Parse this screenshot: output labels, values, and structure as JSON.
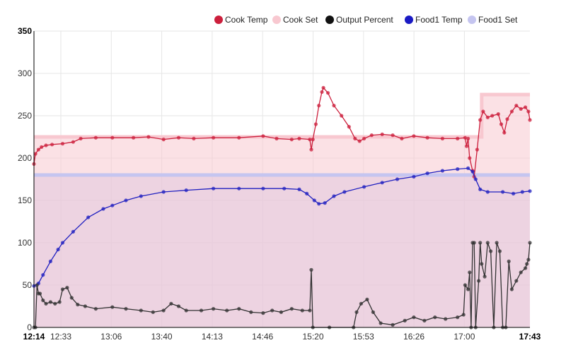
{
  "chart_data": {
    "type": "line",
    "title": "",
    "xlabel": "",
    "ylabel": "",
    "ylim": [
      0,
      350
    ],
    "xlim": [
      "12:14",
      "17:43"
    ],
    "grid": true,
    "legend_position": "top-right",
    "x_ticks": [
      {
        "label": "12:14",
        "bold": true
      },
      {
        "label": "12:33",
        "bold": false
      },
      {
        "label": "13:06",
        "bold": false
      },
      {
        "label": "13:40",
        "bold": false
      },
      {
        "label": "14:13",
        "bold": false
      },
      {
        "label": "14:46",
        "bold": false
      },
      {
        "label": "15:20",
        "bold": false
      },
      {
        "label": "15:53",
        "bold": false
      },
      {
        "label": "16:26",
        "bold": false
      },
      {
        "label": "17:00",
        "bold": false
      },
      {
        "label": "17:43",
        "bold": true
      }
    ],
    "y_ticks": [
      {
        "label": "0",
        "value": 0
      },
      {
        "label": "50",
        "value": 50
      },
      {
        "label": "100",
        "value": 100
      },
      {
        "label": "150",
        "value": 150
      },
      {
        "label": "200",
        "value": 200
      },
      {
        "label": "250",
        "value": 250
      },
      {
        "label": "300",
        "value": 300
      },
      {
        "label": "350",
        "value": 350,
        "bold": true
      }
    ],
    "series": [
      {
        "name": "Food1 Set",
        "color": "#c5c5f0",
        "kind": "step-area",
        "points": [
          [
            "12:14",
            180
          ],
          [
            "17:43",
            180
          ]
        ]
      },
      {
        "name": "Cook Set",
        "color": "#f8c8d0",
        "kind": "step-area",
        "points": [
          [
            "12:14",
            225
          ],
          [
            "17:11",
            225
          ],
          [
            "17:11",
            275
          ],
          [
            "17:43",
            275
          ]
        ]
      },
      {
        "name": "Cook Temp",
        "color": "#cc1f3c",
        "kind": "line",
        "points": [
          [
            "12:14",
            193
          ],
          [
            "12:15",
            205
          ],
          [
            "12:17",
            210
          ],
          [
            "12:19",
            213
          ],
          [
            "12:22",
            215
          ],
          [
            "12:26",
            216
          ],
          [
            "12:33",
            217
          ],
          [
            "12:40",
            219
          ],
          [
            "12:45",
            223
          ],
          [
            "12:55",
            224
          ],
          [
            "13:06",
            224
          ],
          [
            "13:20",
            224
          ],
          [
            "13:30",
            225
          ],
          [
            "13:40",
            222
          ],
          [
            "13:50",
            224
          ],
          [
            "14:00",
            223
          ],
          [
            "14:13",
            224
          ],
          [
            "14:30",
            224
          ],
          [
            "14:46",
            226
          ],
          [
            "14:55",
            223
          ],
          [
            "15:05",
            222
          ],
          [
            "15:10",
            223
          ],
          [
            "15:17",
            222
          ],
          [
            "15:18",
            210
          ],
          [
            "15:19",
            222
          ],
          [
            "15:21",
            240
          ],
          [
            "15:23",
            262
          ],
          [
            "15:25",
            278
          ],
          [
            "15:26",
            283
          ],
          [
            "15:29",
            277
          ],
          [
            "15:33",
            262
          ],
          [
            "15:38",
            250
          ],
          [
            "15:43",
            237
          ],
          [
            "15:47",
            223
          ],
          [
            "15:50",
            220
          ],
          [
            "15:53",
            223
          ],
          [
            "15:58",
            227
          ],
          [
            "16:05",
            228
          ],
          [
            "16:12",
            227
          ],
          [
            "16:18",
            223
          ],
          [
            "16:26",
            226
          ],
          [
            "16:35",
            224
          ],
          [
            "16:45",
            223
          ],
          [
            "16:55",
            223
          ],
          [
            "17:00",
            224
          ],
          [
            "17:01",
            214
          ],
          [
            "17:02",
            223
          ],
          [
            "17:03",
            200
          ],
          [
            "17:05",
            185
          ],
          [
            "17:06",
            178
          ],
          [
            "17:08",
            210
          ],
          [
            "17:10",
            245
          ],
          [
            "17:12",
            255
          ],
          [
            "17:15",
            248
          ],
          [
            "17:18",
            250
          ],
          [
            "17:22",
            252
          ],
          [
            "17:24",
            240
          ],
          [
            "17:26",
            230
          ],
          [
            "17:28",
            246
          ],
          [
            "17:31",
            255
          ],
          [
            "17:34",
            262
          ],
          [
            "17:37",
            258
          ],
          [
            "17:40",
            260
          ],
          [
            "17:42",
            255
          ],
          [
            "17:43",
            245
          ]
        ]
      },
      {
        "name": "Food1 Temp",
        "color": "#2020c0",
        "kind": "line",
        "points": [
          [
            "12:14",
            49
          ],
          [
            "12:17",
            52
          ],
          [
            "12:20",
            62
          ],
          [
            "12:25",
            78
          ],
          [
            "12:30",
            92
          ],
          [
            "12:33",
            100
          ],
          [
            "12:40",
            113
          ],
          [
            "12:50",
            130
          ],
          [
            "13:00",
            140
          ],
          [
            "13:06",
            144
          ],
          [
            "13:15",
            150
          ],
          [
            "13:25",
            155
          ],
          [
            "13:40",
            160
          ],
          [
            "13:55",
            162
          ],
          [
            "14:13",
            164
          ],
          [
            "14:30",
            164
          ],
          [
            "14:46",
            164
          ],
          [
            "15:00",
            164
          ],
          [
            "15:10",
            163
          ],
          [
            "15:15",
            158
          ],
          [
            "15:20",
            150
          ],
          [
            "15:23",
            146
          ],
          [
            "15:27",
            147
          ],
          [
            "15:33",
            155
          ],
          [
            "15:40",
            160
          ],
          [
            "15:53",
            166
          ],
          [
            "16:05",
            171
          ],
          [
            "16:15",
            175
          ],
          [
            "16:26",
            178
          ],
          [
            "16:35",
            182
          ],
          [
            "16:45",
            185
          ],
          [
            "16:55",
            187
          ],
          [
            "17:02",
            188
          ],
          [
            "17:05",
            184
          ],
          [
            "17:07",
            175
          ],
          [
            "17:10",
            163
          ],
          [
            "17:15",
            160
          ],
          [
            "17:25",
            160
          ],
          [
            "17:32",
            158
          ],
          [
            "17:38",
            160
          ],
          [
            "17:43",
            161
          ]
        ]
      },
      {
        "name": "Output Percent",
        "color": "#333333",
        "kind": "line",
        "points": [
          [
            "12:14",
            0
          ],
          [
            "12:15",
            0
          ],
          [
            "12:16",
            50
          ],
          [
            "12:17",
            40
          ],
          [
            "12:18",
            40
          ],
          [
            "12:20",
            32
          ],
          [
            "12:22",
            28
          ],
          [
            "12:25",
            30
          ],
          [
            "12:28",
            28
          ],
          [
            "12:31",
            30
          ],
          [
            "12:33",
            45
          ],
          [
            "12:36",
            47
          ],
          [
            "12:39",
            35
          ],
          [
            "12:43",
            27
          ],
          [
            "12:48",
            25
          ],
          [
            "12:55",
            22
          ],
          [
            "13:06",
            24
          ],
          [
            "13:15",
            22
          ],
          [
            "13:25",
            20
          ],
          [
            "13:33",
            18
          ],
          [
            "13:40",
            20
          ],
          [
            "13:45",
            28
          ],
          [
            "13:50",
            25
          ],
          [
            "13:55",
            20
          ],
          [
            "14:05",
            20
          ],
          [
            "14:13",
            22
          ],
          [
            "14:22",
            20
          ],
          [
            "14:30",
            22
          ],
          [
            "14:38",
            18
          ],
          [
            "14:46",
            17
          ],
          [
            "14:52",
            20
          ],
          [
            "14:58",
            18
          ],
          [
            "15:05",
            22
          ],
          [
            "15:12",
            20
          ],
          [
            "15:17",
            20
          ],
          [
            "15:18",
            68
          ],
          [
            "15:19",
            0
          ],
          [
            "15:30",
            0
          ],
          [
            "15:46",
            0
          ],
          [
            "15:48",
            18
          ],
          [
            "15:51",
            28
          ],
          [
            "15:55",
            33
          ],
          [
            "15:59",
            18
          ],
          [
            "16:04",
            5
          ],
          [
            "16:12",
            3
          ],
          [
            "16:20",
            8
          ],
          [
            "16:26",
            12
          ],
          [
            "16:33",
            8
          ],
          [
            "16:40",
            12
          ],
          [
            "16:47",
            10
          ],
          [
            "16:55",
            12
          ],
          [
            "16:59",
            15
          ],
          [
            "17:00",
            50
          ],
          [
            "17:02",
            45
          ],
          [
            "17:03",
            65
          ],
          [
            "17:04",
            0
          ],
          [
            "17:05",
            100
          ],
          [
            "17:06",
            100
          ],
          [
            "17:07",
            0
          ],
          [
            "17:09",
            55
          ],
          [
            "17:10",
            100
          ],
          [
            "17:11",
            75
          ],
          [
            "17:13",
            60
          ],
          [
            "17:15",
            100
          ],
          [
            "17:17",
            90
          ],
          [
            "17:19",
            0
          ],
          [
            "17:21",
            100
          ],
          [
            "17:23",
            90
          ],
          [
            "17:25",
            0
          ],
          [
            "17:27",
            0
          ],
          [
            "17:29",
            78
          ],
          [
            "17:31",
            45
          ],
          [
            "17:34",
            55
          ],
          [
            "17:37",
            65
          ],
          [
            "17:40",
            70
          ],
          [
            "17:41",
            75
          ],
          [
            "17:42",
            80
          ],
          [
            "17:43",
            100
          ]
        ]
      }
    ],
    "legend": [
      {
        "name": "Cook Temp",
        "color": "#cc1f3c"
      },
      {
        "name": "Cook Set",
        "color": "#f8c8d0"
      },
      {
        "name": "Output Percent",
        "color": "#111111"
      },
      {
        "name": "Food1 Temp",
        "color": "#1a1ac4"
      },
      {
        "name": "Food1 Set",
        "color": "#c5c5f0"
      }
    ]
  }
}
